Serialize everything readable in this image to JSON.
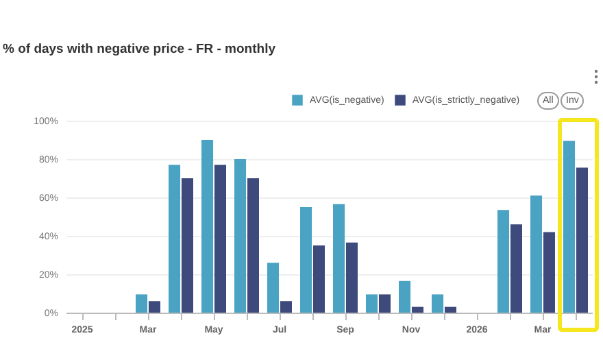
{
  "chart_data": {
    "type": "bar",
    "title": "% of days with negative price - FR - monthly",
    "categories": [
      "2025",
      null,
      "Mar",
      null,
      "May",
      null,
      "Jul",
      null,
      "Sep",
      null,
      "Nov",
      null,
      "2026",
      null,
      "Mar",
      null
    ],
    "series": [
      {
        "name": "AVG(is_negative)",
        "color": "#4aa3c3",
        "values": [
          0,
          0,
          9.5,
          77,
          90,
          80,
          26,
          55,
          56.5,
          9.5,
          16.5,
          9.5,
          0,
          53.5,
          61,
          89.5
        ]
      },
      {
        "name": "AVG(is_strictly_negative)",
        "color": "#3f4a7c",
        "values": [
          0,
          0,
          6,
          70,
          77,
          70,
          6,
          35,
          36.5,
          9.5,
          3,
          3,
          0,
          46,
          42,
          75.5
        ]
      }
    ],
    "ylim": [
      0,
      100
    ],
    "yticks": [
      {
        "value": 0,
        "label": "0%"
      },
      {
        "value": 20,
        "label": "20%"
      },
      {
        "value": 40,
        "label": "40%"
      },
      {
        "value": 60,
        "label": "60%"
      },
      {
        "value": 80,
        "label": "80%"
      },
      {
        "value": 100,
        "label": "100%"
      }
    ],
    "grid": "y",
    "legend": "top right",
    "annotations": [
      "All",
      "Inv"
    ]
  }
}
